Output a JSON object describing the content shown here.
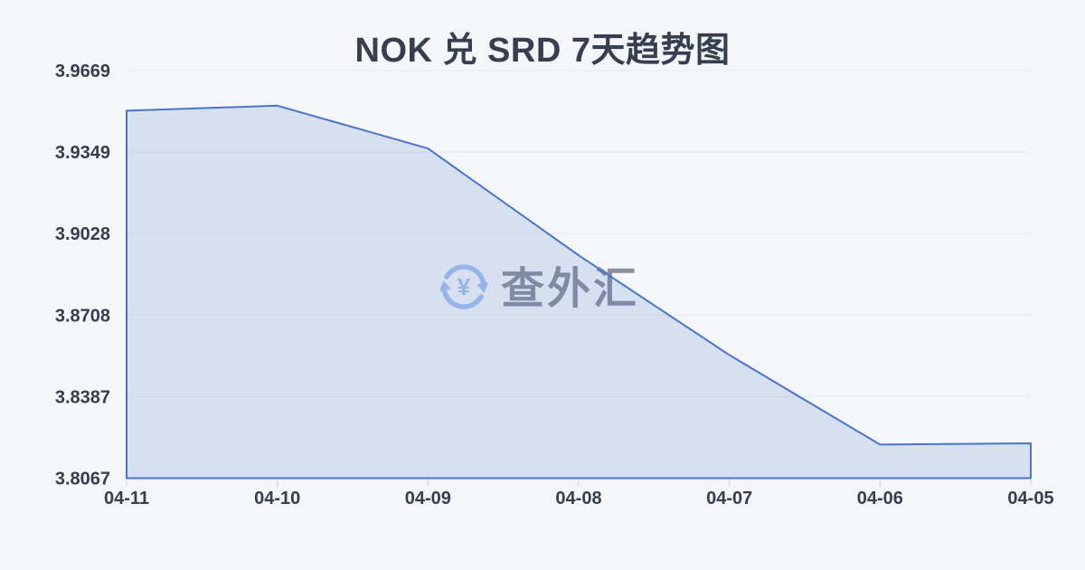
{
  "watermark": {
    "icon": "currency-exchange-icon",
    "text": "查外汇"
  },
  "chart_data": {
    "type": "area",
    "title": "NOK 兑 SRD 7天趋势图",
    "categories": [
      "04-11",
      "04-10",
      "04-09",
      "04-08",
      "04-07",
      "04-06",
      "04-05"
    ],
    "values": [
      3.9511,
      3.9531,
      3.9363,
      3.8943,
      3.8551,
      3.8199,
      3.8204
    ],
    "y_ticks": [
      "3.9669",
      "3.9349",
      "3.9028",
      "3.8708",
      "3.8387",
      "3.8067"
    ],
    "ylim": [
      3.8067,
      3.9669
    ],
    "xlabel": "",
    "ylabel": "",
    "grid": true,
    "legend_position": "none",
    "line_color": "#4a74c9",
    "fill_color": "rgba(74,116,201,0.165)",
    "gridline_color": "#e5e9f0",
    "tick_color": "#ccd2dc",
    "label_color": "#363d4c",
    "title_color": "#363e4f",
    "background_color": "#f4f6f9",
    "watermark_icon_color": "#a4c1ee"
  }
}
